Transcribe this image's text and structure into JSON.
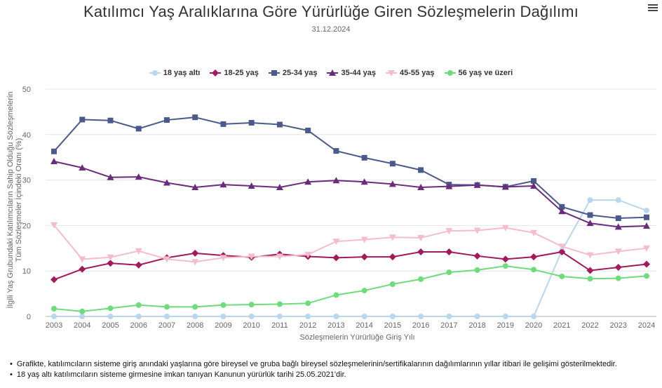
{
  "title": "Katılımcı Yaş Aralıklarına Göre Yürürlüğe Giren Sözleşmelerin Dağılımı",
  "subtitle": "31.12.2024",
  "menu_icon": "hamburger-menu-icon",
  "notes": [
    "Grafikte, katılımcıların sisteme giriş anındaki yaşlarına göre bireysel ve gruba bağlı bireysel sözleşmelerinin/sertifikalarının dağılımlarının yıllar itibari ile gelişimi gösterilmektedir.",
    "18 yaş altı katılımcıların sisteme girmesine imkan tanıyan Kanunun yürürlük tarihi 25.05.2021'dir."
  ],
  "chart_data": {
    "type": "line",
    "title": "Katılımcı Yaş Aralıklarına Göre Yürürlüğe Giren Sözleşmelerin Dağılımı",
    "subtitle": "31.12.2024",
    "xlabel": "Sözleşmelerin Yürürlüğe Giriş Yılı",
    "ylabel": "İlgili Yaş Grubundaki Katılımcıların Sahip Olduğu Sözleşmelerin Tüm Sözleşmeler İçindeki Oranı (%)",
    "ylim": [
      0,
      50
    ],
    "yticks": [
      0,
      10,
      20,
      30,
      40,
      50
    ],
    "grid": true,
    "legend_position": "top",
    "categories": [
      "2003",
      "2004",
      "2005",
      "2006",
      "2007",
      "2008",
      "2009",
      "2010",
      "2011",
      "2012",
      "2013",
      "2014",
      "2015",
      "2016",
      "2017",
      "2018",
      "2019",
      "2020",
      "2021",
      "2022",
      "2023",
      "2024"
    ],
    "series": [
      {
        "name": "18 yaş altı",
        "color": "#b8d7ee",
        "marker": "circle",
        "values": [
          0,
          0,
          0,
          0,
          0,
          0,
          0,
          0,
          0,
          0,
          0,
          0,
          0,
          0,
          0,
          0,
          0,
          0,
          14.5,
          25.6,
          25.6,
          23.3
        ]
      },
      {
        "name": "18-25 yaş",
        "color": "#a3195b",
        "marker": "diamond",
        "values": [
          8.1,
          10.4,
          11.7,
          11.3,
          12.9,
          13.9,
          13.4,
          13.0,
          13.7,
          13.2,
          12.9,
          13.1,
          13.1,
          14.2,
          14.2,
          13.3,
          12.6,
          13.1,
          14.2,
          10.1,
          10.8,
          11.5
        ]
      },
      {
        "name": "25-34 yaş",
        "color": "#4a5a8c",
        "marker": "square",
        "values": [
          36.3,
          43.3,
          43.1,
          41.3,
          43.2,
          43.8,
          42.3,
          42.6,
          42.2,
          40.9,
          36.4,
          34.9,
          33.6,
          32.2,
          29.0,
          28.9,
          28.5,
          29.8,
          24.1,
          22.3,
          21.6,
          21.8
        ]
      },
      {
        "name": "35-44 yaş",
        "color": "#6b2c7e",
        "marker": "triangle",
        "values": [
          34.1,
          32.7,
          30.6,
          30.7,
          29.4,
          28.4,
          29.0,
          28.7,
          28.4,
          29.6,
          29.9,
          29.6,
          29.1,
          28.4,
          28.6,
          28.9,
          28.5,
          28.7,
          23.1,
          20.5,
          19.7,
          19.9
        ]
      },
      {
        "name": "45-55 yaş",
        "color": "#f5bccb",
        "marker": "triangle-down",
        "values": [
          20.1,
          12.6,
          13.0,
          14.4,
          12.6,
          12.0,
          12.9,
          13.2,
          13.2,
          13.6,
          16.5,
          16.9,
          17.4,
          17.3,
          18.8,
          18.9,
          19.5,
          18.4,
          15.4,
          13.5,
          14.3,
          15.0
        ]
      },
      {
        "name": "56 yaş ve üzeri",
        "color": "#6fdc7c",
        "marker": "circle",
        "values": [
          1.7,
          1.1,
          1.8,
          2.5,
          2.1,
          2.1,
          2.5,
          2.6,
          2.7,
          2.9,
          4.7,
          5.7,
          7.1,
          8.2,
          9.7,
          10.2,
          11.1,
          10.3,
          8.8,
          8.3,
          8.4,
          8.9
        ]
      }
    ]
  }
}
